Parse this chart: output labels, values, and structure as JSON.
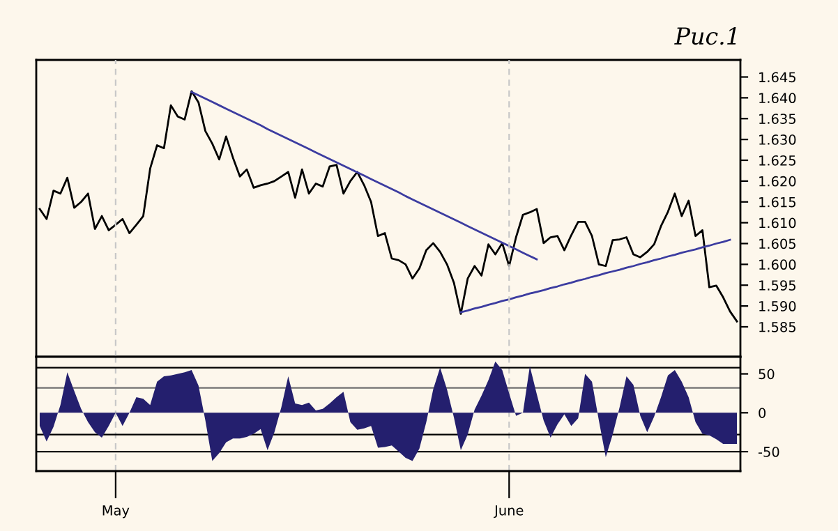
{
  "chart_data": [
    {
      "type": "line",
      "title": "Рис.1",
      "ylim": [
        1.5778,
        1.6491
      ],
      "tick_labels": "y",
      "legend": false,
      "categories": [
        null,
        null,
        null,
        null,
        null,
        null,
        null,
        null,
        null,
        null,
        null,
        null,
        null,
        null,
        null,
        null,
        null,
        null,
        null,
        null,
        null,
        null,
        null,
        null,
        null,
        null,
        null,
        null,
        null,
        null,
        null,
        null,
        null,
        null,
        null,
        null,
        null,
        null,
        null,
        null,
        null,
        null,
        null,
        null,
        null,
        null,
        null,
        null,
        null,
        null,
        null,
        null,
        null,
        null,
        null,
        null,
        null,
        null,
        null,
        null,
        null,
        null,
        null,
        null,
        null,
        null,
        null,
        null,
        null,
        null,
        null,
        null,
        null,
        null,
        null,
        null,
        null,
        null,
        null,
        null,
        null,
        null,
        null,
        null,
        null,
        null,
        null,
        null,
        null,
        null,
        null,
        null,
        null,
        null,
        null,
        null,
        null,
        null,
        null,
        null,
        null,
        null
      ],
      "yticks": [
        {
          "value": 1.585,
          "label": "1.585"
        },
        {
          "value": 1.59,
          "label": "1.590"
        },
        {
          "value": 1.595,
          "label": "1.595"
        },
        {
          "value": 1.6,
          "label": "1.600"
        },
        {
          "value": 1.605,
          "label": "1.605"
        },
        {
          "value": 1.61,
          "label": "1.610"
        },
        {
          "value": 1.615,
          "label": "1.615"
        },
        {
          "value": 1.62,
          "label": "1.620"
        },
        {
          "value": 1.625,
          "label": "1.625"
        },
        {
          "value": 1.63,
          "label": "1.630"
        },
        {
          "value": 1.635,
          "label": "1.635"
        },
        {
          "value": 1.64,
          "label": "1.640"
        },
        {
          "value": 1.645,
          "label": "1.645"
        }
      ],
      "series": [
        {
          "color": "#000000",
          "values": [
            1.6133,
            1.6109,
            1.6177,
            1.617,
            1.6208,
            1.6136,
            1.615,
            1.617,
            1.6085,
            1.6116,
            1.6082,
            1.6095,
            1.6109,
            1.6075,
            1.6095,
            1.6116,
            1.623,
            1.6286,
            1.6279,
            1.6382,
            1.6355,
            1.6348,
            1.6416,
            1.6389,
            1.632,
            1.629,
            1.6252,
            1.6307,
            1.6256,
            1.6211,
            1.6228,
            1.6184,
            1.619,
            1.6194,
            1.62,
            1.6211,
            1.6222,
            1.616,
            1.6228,
            1.617,
            1.6194,
            1.6187,
            1.6235,
            1.6239,
            1.617,
            1.62,
            1.6222,
            1.619,
            1.615,
            1.6068,
            1.6075,
            1.6014,
            1.601,
            1.6,
            1.5966,
            1.599,
            1.6034,
            1.6051,
            1.603,
            1.6,
            1.5956,
            1.5881,
            1.5966,
            1.5996,
            1.5973,
            1.6048,
            1.6024,
            1.6051,
            1.5996,
            1.6065,
            1.6119,
            1.6125,
            1.6133,
            1.6051,
            1.6065,
            1.6068,
            1.6034,
            1.607,
            1.6102,
            1.6102,
            1.6068,
            1.6,
            1.5996,
            1.6058,
            1.606,
            1.6065,
            1.6024,
            1.6017,
            1.603,
            1.6048,
            1.6092,
            1.6126,
            1.617,
            1.6116,
            1.6153,
            1.6068,
            1.6082,
            1.5945,
            1.5949,
            1.5921,
            1.5887,
            1.5863
          ]
        },
        {
          "color": "#3c3ca0",
          "values": [
            null,
            null,
            null,
            null,
            null,
            null,
            null,
            null,
            null,
            null,
            null,
            null,
            null,
            null,
            null,
            null,
            null,
            null,
            null,
            null,
            null,
            null,
            1.6414,
            1.6406,
            1.6398,
            1.639,
            1.6382,
            1.6374,
            1.6366,
            1.6358,
            1.635,
            1.6342,
            1.6334,
            1.6325,
            1.6317,
            1.6309,
            1.6301,
            1.6293,
            1.6285,
            1.6277,
            1.6269,
            1.6261,
            1.6253,
            1.6245,
            1.6237,
            1.6229,
            1.6221,
            1.6213,
            1.6205,
            1.6197,
            1.6189,
            1.6181,
            1.6173,
            1.6164,
            1.6156,
            1.6148,
            1.614,
            1.6132,
            1.6124,
            1.6116,
            1.6108,
            1.61,
            1.6092,
            1.6084,
            1.6076,
            1.6068,
            1.606,
            1.6052,
            1.6044,
            1.6036,
            1.6028,
            1.602,
            1.6012,
            null,
            null,
            null,
            null,
            null,
            null,
            null,
            null,
            null,
            null,
            null,
            null,
            null,
            null,
            null,
            null,
            null,
            null,
            null,
            null,
            null,
            null,
            null,
            null,
            null,
            null,
            null,
            null,
            null
          ]
        },
        {
          "color": "#3c3ca0",
          "values": [
            null,
            null,
            null,
            null,
            null,
            null,
            null,
            null,
            null,
            null,
            null,
            null,
            null,
            null,
            null,
            null,
            null,
            null,
            null,
            null,
            null,
            null,
            null,
            null,
            null,
            null,
            null,
            null,
            null,
            null,
            null,
            null,
            null,
            null,
            null,
            null,
            null,
            null,
            null,
            null,
            null,
            null,
            null,
            null,
            null,
            null,
            null,
            null,
            null,
            null,
            null,
            null,
            null,
            null,
            null,
            null,
            null,
            null,
            null,
            null,
            null,
            1.5885,
            1.5889,
            1.5894,
            1.5898,
            1.5903,
            1.5907,
            1.5912,
            1.5916,
            1.5921,
            1.5925,
            1.593,
            1.5934,
            1.5938,
            1.5943,
            1.5947,
            1.5952,
            1.5956,
            1.5961,
            1.5965,
            1.597,
            1.5974,
            1.5979,
            1.5983,
            1.5987,
            1.5992,
            1.5996,
            1.6001,
            1.6005,
            1.601,
            1.6014,
            1.6019,
            1.6023,
            1.6028,
            1.6032,
            1.6036,
            1.6041,
            1.6045,
            1.605,
            1.6054,
            1.6059,
            null
          ]
        }
      ]
    },
    {
      "type": "area",
      "color": "#241f6e",
      "ylim": [
        -75,
        72
      ],
      "grid": "x",
      "legend": false,
      "yticks": [
        50,
        0,
        -50
      ],
      "categories": [
        null,
        null,
        null,
        null,
        null,
        null,
        null,
        null,
        null,
        null,
        null,
        "May",
        null,
        null,
        null,
        null,
        null,
        null,
        null,
        null,
        null,
        null,
        null,
        null,
        null,
        null,
        null,
        null,
        null,
        null,
        null,
        null,
        null,
        null,
        null,
        null,
        null,
        null,
        null,
        null,
        null,
        null,
        null,
        null,
        null,
        null,
        null,
        null,
        null,
        null,
        null,
        null,
        null,
        null,
        null,
        null,
        null,
        null,
        null,
        null,
        null,
        null,
        null,
        null,
        null,
        null,
        null,
        null,
        "June",
        null,
        null,
        null,
        null,
        null,
        null,
        null,
        null,
        null,
        null,
        null,
        null,
        null,
        null,
        null,
        null,
        null,
        null,
        null,
        null,
        null,
        null,
        null,
        null,
        null,
        null,
        null,
        null,
        null,
        null,
        null,
        null,
        null
      ],
      "ref_lines": [
        {
          "axis": "y",
          "value": 58,
          "color": "#000000",
          "line_style": "solid"
        },
        {
          "axis": "y",
          "value": 32,
          "color": "#707070",
          "line_style": "solid"
        },
        {
          "axis": "y",
          "value": -28,
          "color": "#000000",
          "line_style": "solid"
        },
        {
          "axis": "y",
          "value": -50,
          "color": "#000000",
          "line_style": "solid"
        }
      ],
      "values": [
        -17,
        -37,
        -18,
        10,
        52,
        28,
        5,
        -12,
        -25,
        -32,
        -17,
        0,
        -17,
        0,
        20,
        18,
        10,
        40,
        47,
        48,
        50,
        52,
        55,
        35,
        -10,
        -62,
        -52,
        -38,
        -33,
        -33,
        -31,
        -27,
        -21,
        -48,
        -25,
        7,
        47,
        12,
        10,
        13,
        3,
        5,
        12,
        20,
        27,
        -12,
        -22,
        -20,
        -17,
        -45,
        -44,
        -42,
        -50,
        -58,
        -62,
        -46,
        -12,
        30,
        58,
        30,
        -6,
        -48,
        -28,
        4,
        22,
        42,
        66,
        55,
        25,
        -4,
        0,
        60,
        24,
        -10,
        -32,
        -15,
        -2,
        -17,
        -7,
        50,
        40,
        -10,
        -57,
        -28,
        7,
        47,
        36,
        -4,
        -25,
        -5,
        20,
        48,
        55,
        40,
        20,
        -12,
        -27,
        -29,
        -34,
        -40,
        -40,
        -40
      ]
    }
  ]
}
